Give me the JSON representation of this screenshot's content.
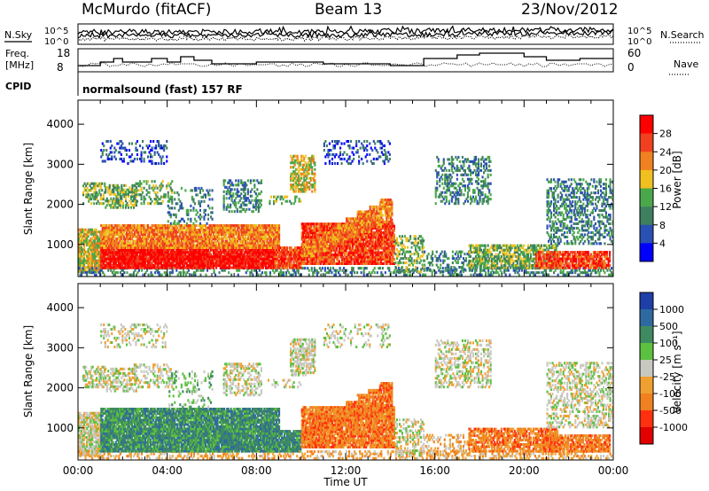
{
  "header": {
    "station": "McMurdo (fitACF)",
    "beam": "Beam 13",
    "date": "23/Nov/2012"
  },
  "status_panels": {
    "noise": {
      "left_label": "N.Sky",
      "right_label": "N.Search",
      "ticks_left": [
        "10^5",
        "10^0"
      ],
      "ticks_right": [
        "10^5",
        "10^0"
      ]
    },
    "freq": {
      "left_label_1": "Freq.",
      "left_label_2": "[MHz]",
      "right_label": "Nave",
      "ticks_left": [
        "18",
        "8"
      ],
      "ticks_right": [
        "60",
        "0"
      ]
    },
    "cpid": {
      "label": "CPID",
      "program": "normalsound (fast) 157 RF"
    }
  },
  "chart_data": [
    {
      "type": "heatmap",
      "name": "power",
      "ylabel": "Slant Range [km]",
      "xlabel": "",
      "xlim": [
        0,
        24
      ],
      "ylim": [
        200,
        4600
      ],
      "yticks": [
        "1000",
        "2000",
        "3000",
        "4000"
      ],
      "colorbar": {
        "label": "Power [dB]",
        "ticks": [
          "4",
          "8",
          "12",
          "16",
          "20",
          "24",
          "28"
        ],
        "colors": [
          "#0000ff",
          "#2a50b4",
          "#3f7f5f",
          "#4aa84a",
          "#f0c020",
          "#f08020",
          "#f04020",
          "#ff0000"
        ]
      }
    },
    {
      "type": "heatmap",
      "name": "velocity",
      "ylabel": "Slant Range [km]",
      "xlabel": "Time UT",
      "xlim": [
        0,
        24
      ],
      "ylim": [
        200,
        4600
      ],
      "xticks": [
        "00:00",
        "04:00",
        "08:00",
        "12:00",
        "16:00",
        "20:00",
        "00:00"
      ],
      "yticks": [
        "1000",
        "2000",
        "3000",
        "4000"
      ],
      "colorbar": {
        "label": "Velocity [m s⁻¹]",
        "ticks": [
          "1000",
          "500",
          "100",
          "25",
          "-25",
          "-100",
          "-500",
          "-1000"
        ],
        "colors": [
          "#1e3ea8",
          "#2e6aa0",
          "#3f8a60",
          "#5cc040",
          "#c8c8c0",
          "#f0a030",
          "#f08020",
          "#ff3010",
          "#e00000"
        ]
      }
    }
  ]
}
